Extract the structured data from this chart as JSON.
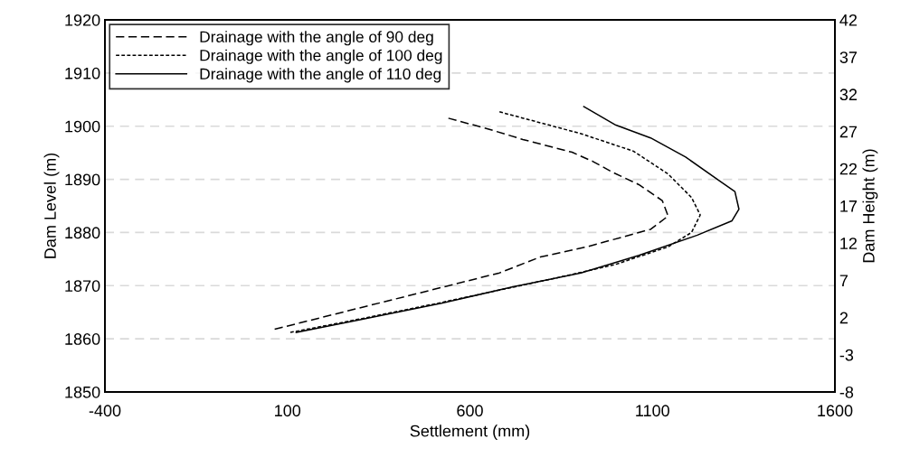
{
  "chart_data": {
    "type": "line",
    "xlabel": "Settlement (mm)",
    "ylabel": "Dam Level (m)",
    "y2label": "Dam Height (m)",
    "xlim": [
      -400,
      1600
    ],
    "xticks": [
      -400,
      100,
      600,
      1100,
      1600
    ],
    "ylim": [
      1850,
      1920
    ],
    "yticks": [
      1850,
      1860,
      1870,
      1880,
      1890,
      1900,
      1910,
      1920
    ],
    "y2lim": [
      -8,
      42
    ],
    "y2ticks": [
      -8,
      -3,
      2,
      7,
      12,
      17,
      22,
      27,
      32,
      37,
      42
    ],
    "grid": "y",
    "legend": "top left",
    "marker": "none",
    "series": [
      {
        "name": "Drainage with the angle of 90 deg",
        "color": "#000000",
        "line_style": "dashed",
        "x": [
          65,
          681,
          793,
          920,
          1095,
          1143,
          1127,
          1063,
          992,
          936,
          880,
          745,
          649,
          541
        ],
        "values": [
          1861.8,
          1872.4,
          1875.4,
          1877.3,
          1880.6,
          1883.1,
          1886.0,
          1889.0,
          1891.3,
          1893.4,
          1895.1,
          1897.5,
          1899.5,
          1901.5
        ]
      },
      {
        "name": "Drainage with the angle of 100 deg",
        "color": "#000000",
        "line_style": "dotted",
        "x": [
          108,
          267,
          506,
          697,
          840,
          999,
          1143,
          1207,
          1231,
          1207,
          1143,
          1048,
          904,
          681
        ],
        "values": [
          1861.2,
          1863.3,
          1866.6,
          1869.4,
          1871.5,
          1874.0,
          1877.3,
          1880.0,
          1883.3,
          1886.6,
          1891.0,
          1895.3,
          1898.6,
          1902.7
        ]
      },
      {
        "name": "Drainage with the angle of 110 deg",
        "color": "#000000",
        "line_style": "solid",
        "x": [
          124,
          299,
          522,
          713,
          904,
          1063,
          1223,
          1318,
          1337,
          1326,
          1286,
          1191,
          1095,
          1000,
          912
        ],
        "values": [
          1861.2,
          1863.6,
          1866.7,
          1869.7,
          1872.4,
          1875.7,
          1879.5,
          1882.2,
          1884.4,
          1887.7,
          1889.6,
          1894.2,
          1897.8,
          1900.2,
          1903.7
        ]
      }
    ]
  }
}
